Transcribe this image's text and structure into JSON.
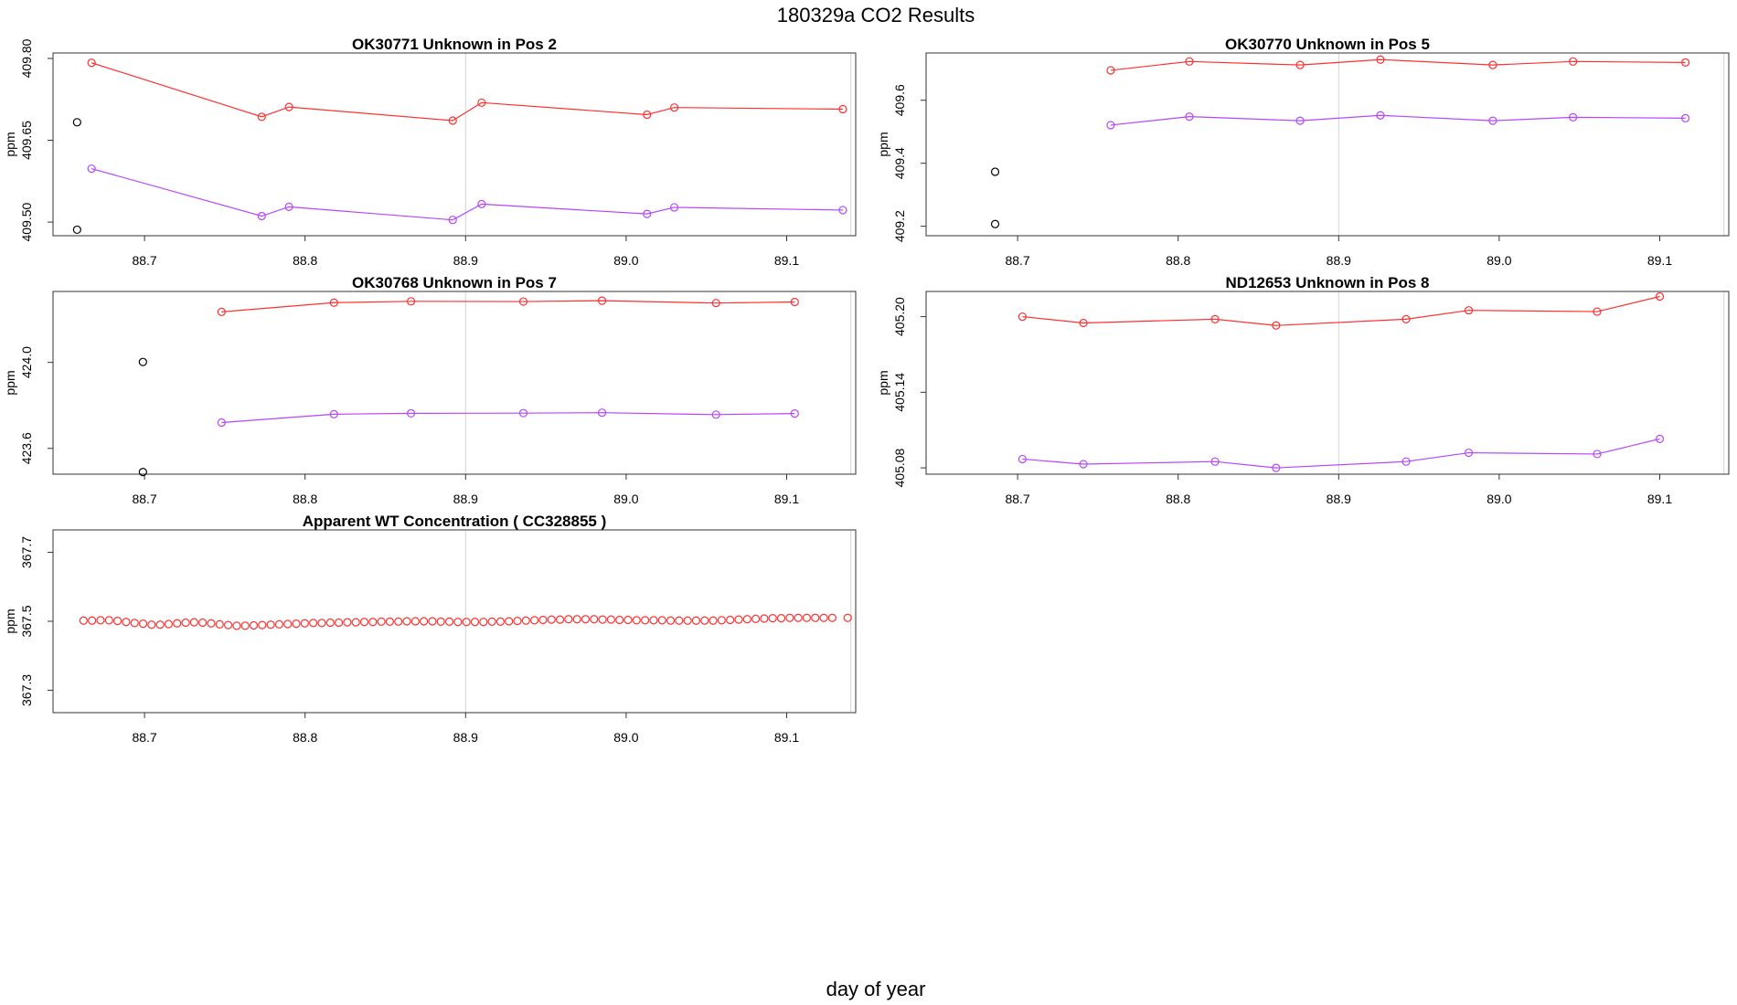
{
  "title": "180329a  CO2 Results",
  "xlabel": "day of year",
  "colors": {
    "red": "#ff3030",
    "purple": "#b545ff",
    "black": "#000000",
    "ref_line": "#d3d3d3",
    "frame": "#333333"
  },
  "chart_data": [
    {
      "type": "line",
      "title": "OK30771    Unknown in Pos 2",
      "ylabel": "ppm",
      "xlim": [
        88.643,
        89.143
      ],
      "ylim": [
        409.475,
        409.81
      ],
      "xticks": [
        "88.7",
        "88.8",
        "88.9",
        "89.0",
        "89.1"
      ],
      "yticks": [
        "409.50",
        "409.65",
        "409.80"
      ],
      "vlines": [
        88.9,
        89.14
      ],
      "series": [
        {
          "color": "#ff3030",
          "x": [
            88.667,
            88.773,
            88.79,
            88.892,
            88.91,
            89.013,
            89.03,
            89.135
          ],
          "y": [
            409.792,
            409.693,
            409.711,
            409.686,
            409.719,
            409.697,
            409.71,
            409.707
          ]
        },
        {
          "color": "#b545ff",
          "x": [
            88.667,
            88.773,
            88.79,
            88.892,
            88.91,
            89.013,
            89.03,
            89.135
          ],
          "y": [
            409.598,
            409.511,
            409.528,
            409.504,
            409.533,
            409.515,
            409.527,
            409.522
          ]
        },
        {
          "color": "#000000",
          "points_only": true,
          "x": [
            88.658,
            88.658
          ],
          "y": [
            409.683,
            409.486
          ]
        }
      ]
    },
    {
      "type": "line",
      "title": "OK30770    Unknown in Pos 5",
      "ylabel": "ppm",
      "xlim": [
        88.643,
        89.143
      ],
      "ylim": [
        409.17,
        409.75
      ],
      "xticks": [
        "88.7",
        "88.8",
        "88.9",
        "89.0",
        "89.1"
      ],
      "yticks": [
        "409.2",
        "409.4",
        "409.6"
      ],
      "vlines": [
        88.9,
        89.14
      ],
      "series": [
        {
          "color": "#ff3030",
          "x": [
            88.758,
            88.807,
            88.876,
            88.926,
            88.996,
            89.046,
            89.116
          ],
          "y": [
            409.695,
            409.723,
            409.712,
            409.729,
            409.712,
            409.723,
            409.72
          ]
        },
        {
          "color": "#b545ff",
          "x": [
            88.758,
            88.807,
            88.876,
            88.926,
            88.996,
            89.046,
            89.116
          ],
          "y": [
            409.521,
            409.548,
            409.535,
            409.552,
            409.535,
            409.546,
            409.543
          ]
        },
        {
          "color": "#000000",
          "points_only": true,
          "x": [
            88.686,
            88.686
          ],
          "y": [
            409.373,
            409.207
          ]
        }
      ]
    },
    {
      "type": "line",
      "title": "OK30768    Unknown in Pos 7",
      "ylabel": "ppm",
      "xlim": [
        88.643,
        89.143
      ],
      "ylim": [
        423.48,
        424.33
      ],
      "xticks": [
        "88.7",
        "88.8",
        "88.9",
        "89.0",
        "89.1"
      ],
      "yticks": [
        "423.6",
        "424.0"
      ],
      "vlines": [
        88.9,
        89.14
      ],
      "series": [
        {
          "color": "#ff3030",
          "x": [
            88.748,
            88.818,
            88.866,
            88.936,
            88.985,
            89.056,
            89.105
          ],
          "y": [
            424.235,
            424.278,
            424.284,
            424.283,
            424.287,
            424.276,
            424.281
          ]
        },
        {
          "color": "#b545ff",
          "x": [
            88.748,
            88.818,
            88.866,
            88.936,
            88.985,
            89.056,
            89.105
          ],
          "y": [
            423.72,
            423.759,
            423.763,
            423.764,
            423.766,
            423.757,
            423.762
          ]
        },
        {
          "color": "#000000",
          "points_only": true,
          "x": [
            88.699,
            88.699
          ],
          "y": [
            424.002,
            423.49
          ]
        }
      ]
    },
    {
      "type": "line",
      "title": "ND12653    Unknown in Pos 8",
      "ylabel": "ppm",
      "xlim": [
        88.643,
        89.143
      ],
      "ylim": [
        405.075,
        405.22
      ],
      "xticks": [
        "88.7",
        "88.8",
        "88.9",
        "89.0",
        "89.1"
      ],
      "yticks": [
        "405.08",
        "405.14",
        "405.20"
      ],
      "vlines": [
        88.9,
        89.14
      ],
      "series": [
        {
          "color": "#ff3030",
          "x": [
            88.703,
            88.741,
            88.823,
            88.861,
            88.942,
            88.981,
            89.061,
            89.1
          ],
          "y": [
            405.2,
            405.195,
            405.198,
            405.193,
            405.198,
            405.205,
            405.204,
            405.216
          ]
        },
        {
          "color": "#b545ff",
          "x": [
            88.703,
            88.741,
            88.823,
            88.861,
            88.942,
            88.981,
            89.061,
            89.1
          ],
          "y": [
            405.087,
            405.083,
            405.085,
            405.08,
            405.085,
            405.092,
            405.091,
            405.103
          ]
        }
      ]
    },
    {
      "type": "scatter",
      "title": "Apparent WT Concentration ( CC328855 )",
      "ylabel": "ppm",
      "xlim": [
        88.643,
        89.143
      ],
      "ylim": [
        367.235,
        367.765
      ],
      "xticks": [
        "88.7",
        "88.8",
        "88.9",
        "89.0",
        "89.1"
      ],
      "yticks": [
        "367.3",
        "367.5",
        "367.7"
      ],
      "vlines": [
        88.9,
        89.14
      ],
      "series": [
        {
          "color": "#ff3030",
          "points_only": true,
          "x": [
            88.662,
            88.6673,
            88.6726,
            88.6779,
            88.6832,
            88.6885,
            88.6938,
            88.6991,
            88.7044,
            88.7097,
            88.715,
            88.7203,
            88.7256,
            88.7309,
            88.7362,
            88.7415,
            88.7468,
            88.7521,
            88.7574,
            88.7627,
            88.768,
            88.7733,
            88.7786,
            88.7839,
            88.7892,
            88.7945,
            88.7998,
            88.8051,
            88.8104,
            88.8157,
            88.821,
            88.8263,
            88.8316,
            88.8369,
            88.8422,
            88.8475,
            88.8528,
            88.8581,
            88.8634,
            88.8687,
            88.874,
            88.8793,
            88.8846,
            88.8899,
            88.8952,
            88.9005,
            88.9058,
            88.9111,
            88.9164,
            88.9217,
            88.927,
            88.9323,
            88.9376,
            88.9429,
            88.9482,
            88.9535,
            88.9588,
            88.9641,
            88.9694,
            88.9747,
            88.98,
            88.9853,
            88.9906,
            88.9959,
            89.0012,
            89.0065,
            89.0118,
            89.0171,
            89.0224,
            89.0277,
            89.033,
            89.0383,
            89.0436,
            89.0489,
            89.0542,
            89.0595,
            89.0648,
            89.0701,
            89.0754,
            89.0807,
            89.086,
            89.0913,
            89.0966,
            89.1019,
            89.1072,
            89.1125,
            89.1178,
            89.1231,
            89.1284,
            89.138
          ],
          "y": [
            367.502,
            367.502,
            367.503,
            367.503,
            367.501,
            367.498,
            367.495,
            367.493,
            367.49,
            367.49,
            367.492,
            367.494,
            367.496,
            367.497,
            367.496,
            367.494,
            367.491,
            367.489,
            367.487,
            367.487,
            367.488,
            367.489,
            367.49,
            367.491,
            367.492,
            367.493,
            367.494,
            367.495,
            367.495,
            367.496,
            367.496,
            367.497,
            367.497,
            367.498,
            367.498,
            367.499,
            367.499,
            367.499,
            367.5,
            367.5,
            367.5,
            367.5,
            367.499,
            367.499,
            367.498,
            367.498,
            367.498,
            367.498,
            367.499,
            367.499,
            367.5,
            367.501,
            367.502,
            367.503,
            367.504,
            367.505,
            367.505,
            367.506,
            367.506,
            367.506,
            367.506,
            367.505,
            367.505,
            367.504,
            367.504,
            367.503,
            367.503,
            367.503,
            367.503,
            367.502,
            367.502,
            367.502,
            367.502,
            367.502,
            367.502,
            367.503,
            367.504,
            367.505,
            367.506,
            367.507,
            367.508,
            367.509,
            367.509,
            367.51,
            367.51,
            367.51,
            367.51,
            367.51,
            367.51,
            367.51
          ]
        }
      ]
    }
  ]
}
